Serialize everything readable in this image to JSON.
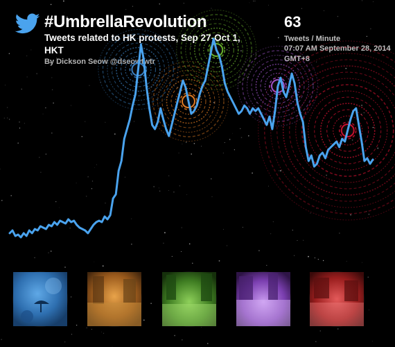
{
  "header": {
    "title": "#UmbrellaRevolution",
    "subtitle": "Tweets related to HK protests, Sep 27-Oct 1, HKT",
    "byline": "By Dickson Seow @dseowtwtr"
  },
  "stat": {
    "value": "63",
    "unit": "Tweets / Minute",
    "time": "07:07 AM September 28, 2014 GMT+8"
  },
  "colors": {
    "background": "#000000",
    "line": "#4aa3ee",
    "bird": "#4aa3ee",
    "cluster_blue": "#3a7fc0",
    "cluster_orange": "#e07a22",
    "cluster_green": "#68b12c",
    "cluster_purple": "#9d52c9",
    "cluster_red": "#c8102e"
  },
  "icons": {
    "logo": "twitter-bird-icon"
  },
  "chart_data": {
    "type": "line",
    "title": "#UmbrellaRevolution",
    "ylabel": "Tweets / Minute",
    "series": [
      {
        "values": [
          10,
          12,
          8,
          9,
          7,
          10,
          8,
          12,
          10,
          13,
          12,
          15,
          14,
          13,
          16,
          15,
          18,
          16,
          19,
          18,
          17,
          20,
          18,
          19,
          16,
          14,
          13,
          12,
          10,
          13,
          16,
          18,
          19,
          18,
          22,
          20,
          23,
          35,
          38,
          55,
          62,
          78,
          85,
          92,
          102,
          110,
          128,
          146,
          135,
          115,
          100,
          88,
          85,
          90,
          100,
          92,
          85,
          80,
          88,
          96,
          104,
          112,
          120,
          115,
          105,
          96,
          98,
          102,
          110,
          116,
          120,
          130,
          140,
          150,
          142,
          138,
          130,
          118,
          112,
          108,
          104,
          100,
          96,
          98,
          102,
          100,
          96,
          100,
          98,
          100,
          96,
          92,
          88,
          94,
          85,
          98,
          116,
          122,
          112,
          108,
          116,
          125,
          118,
          104,
          96,
          90,
          72,
          62,
          66,
          58,
          60,
          66,
          68,
          64,
          70,
          72,
          74,
          76,
          72,
          78,
          76,
          84,
          92,
          98,
          100,
          88,
          76,
          62,
          64,
          60,
          63
        ]
      }
    ],
    "ylim": [
      0,
      160
    ],
    "highlights": [
      {
        "series_index": 46,
        "color": "cluster_blue"
      },
      {
        "series_index": 64,
        "color": "cluster_orange"
      },
      {
        "series_index": 74,
        "color": "cluster_green"
      },
      {
        "series_index": 96,
        "color": "cluster_purple"
      },
      {
        "series_index": 121,
        "color": "cluster_red"
      }
    ]
  }
}
